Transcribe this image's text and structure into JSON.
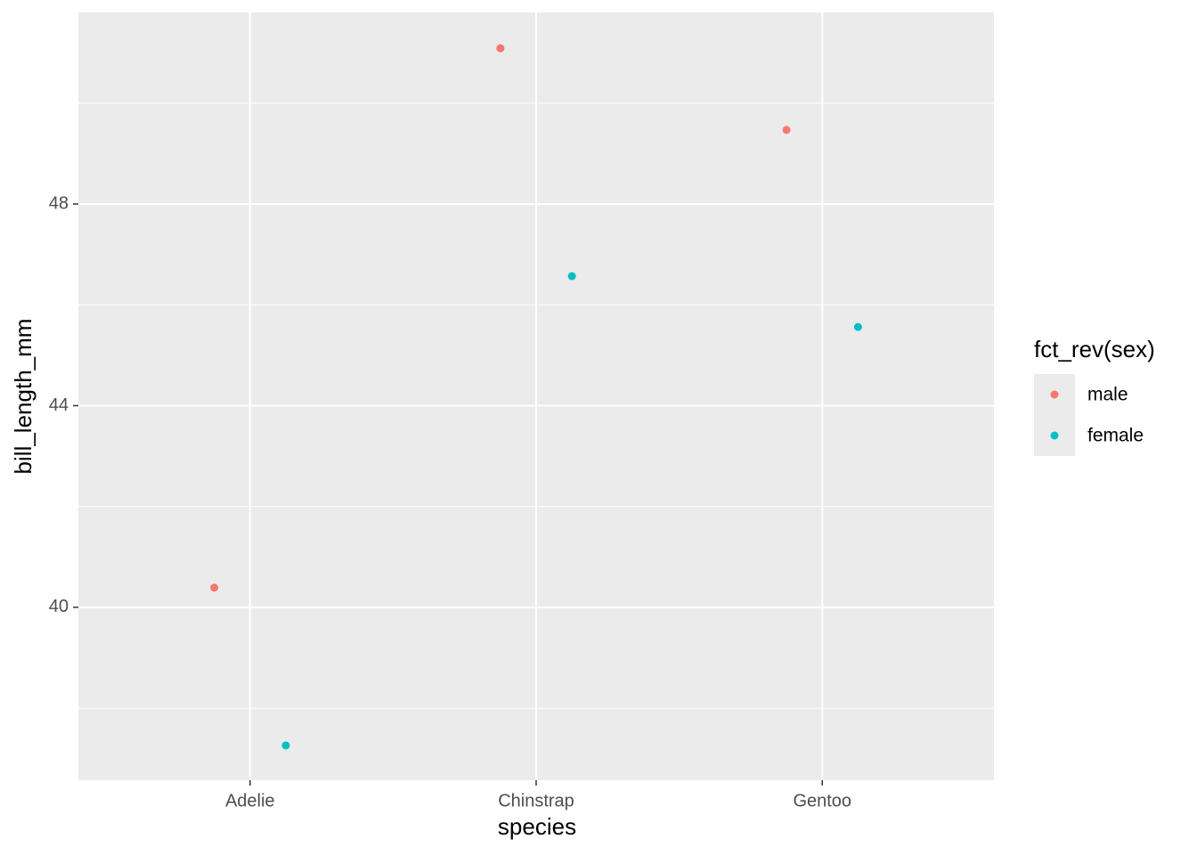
{
  "chart_data": {
    "type": "scatter",
    "x_label": "species",
    "y_label": "bill_length_mm",
    "categories": [
      "Adelie",
      "Chinstrap",
      "Gentoo"
    ],
    "legend_title": "fct_rev(sex)",
    "series": [
      {
        "name": "male",
        "color": "#F8766D",
        "values": [
          40.39,
          51.09,
          49.47
        ]
      },
      {
        "name": "female",
        "color": "#00BFC4",
        "values": [
          37.26,
          46.57,
          45.56
        ]
      }
    ],
    "ylim": [
      36.57,
      51.8
    ],
    "yticks": [
      40,
      44,
      48
    ],
    "grid": true,
    "legend": "right"
  }
}
